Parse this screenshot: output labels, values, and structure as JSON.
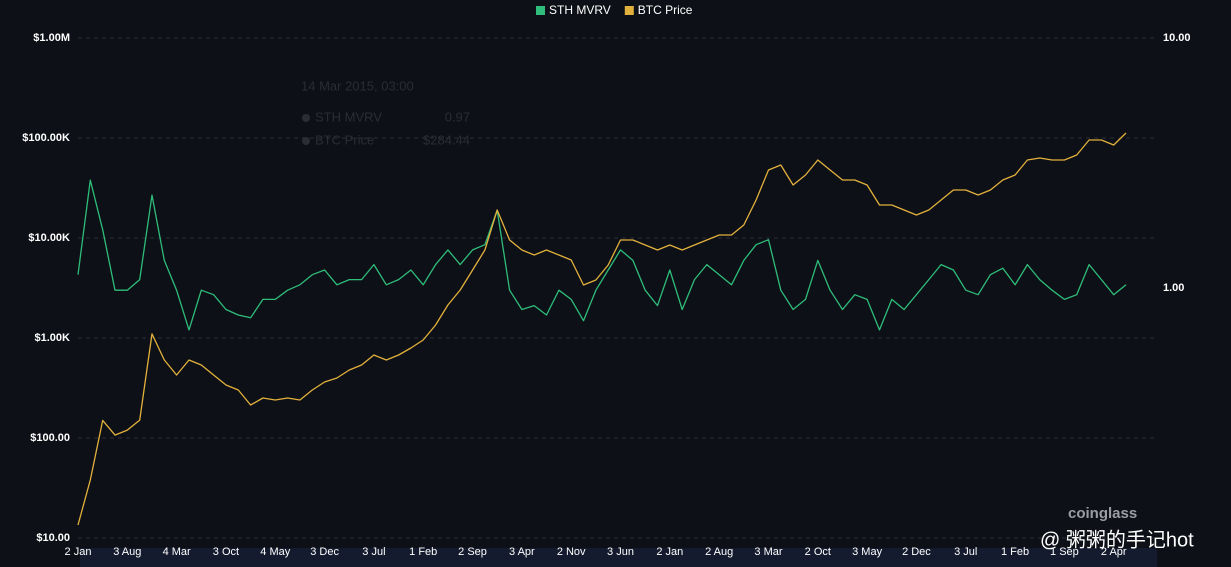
{
  "chart_data": {
    "type": "line",
    "legend_position": "top",
    "grid": true,
    "ylog": true,
    "y2log": true,
    "categories": [
      "2 Jan",
      null,
      null,
      null,
      "3 Aug",
      null,
      null,
      null,
      "4 Mar",
      null,
      null,
      null,
      "3 Oct",
      null,
      null,
      null,
      "4 May",
      null,
      null,
      null,
      "3 Dec",
      null,
      null,
      null,
      "3 Jul",
      null,
      null,
      null,
      "1 Feb",
      null,
      null,
      null,
      "2 Sep",
      null,
      null,
      null,
      "3 Apr",
      null,
      null,
      null,
      "2 Nov",
      null,
      null,
      null,
      "3 Jun",
      null,
      null,
      null,
      "2 Jan",
      null,
      null,
      null,
      "2 Aug",
      null,
      null,
      null,
      "3 Mar",
      null,
      null,
      null,
      "2 Oct",
      null,
      null,
      null,
      "3 May",
      null,
      null,
      null,
      "2 Dec",
      null,
      null,
      null,
      "3 Jul",
      null,
      null,
      null,
      "1 Feb",
      null,
      null,
      null,
      "1 Sep",
      null,
      null,
      null,
      "2 Apr",
      null
    ],
    "series": [
      {
        "name": "STH MVRV",
        "color": "#2ebd7a",
        "axis": "y2",
        "values": [
          1.13,
          2.7,
          1.71,
          0.98,
          0.98,
          1.08,
          2.35,
          1.29,
          0.98,
          0.68,
          0.98,
          0.94,
          0.82,
          0.78,
          0.76,
          0.9,
          0.9,
          0.98,
          1.03,
          1.13,
          1.18,
          1.03,
          1.08,
          1.08,
          1.24,
          1.03,
          1.08,
          1.18,
          1.03,
          1.24,
          1.42,
          1.24,
          1.42,
          1.49,
          2.05,
          0.98,
          0.82,
          0.85,
          0.78,
          0.98,
          0.9,
          0.74,
          0.98,
          1.18,
          1.42,
          1.29,
          0.98,
          0.85,
          1.18,
          0.82,
          1.08,
          1.24,
          1.13,
          1.03,
          1.29,
          1.49,
          1.56,
          0.98,
          0.82,
          0.9,
          1.29,
          0.98,
          0.82,
          0.94,
          0.9,
          0.68,
          0.9,
          0.82,
          0.94,
          1.08,
          1.24,
          1.18,
          0.98,
          0.94,
          1.13,
          1.2,
          1.03,
          1.24,
          1.08,
          0.98,
          0.9,
          0.94,
          1.24,
          1.08,
          0.94,
          1.03
        ]
      },
      {
        "name": "BTC Price",
        "color": "#e2b13c",
        "values": [
          13.5,
          38,
          150,
          107,
          120,
          151,
          1100,
          603,
          427,
          603,
          537,
          427,
          339,
          302,
          214,
          251,
          240,
          251,
          240,
          302,
          363,
          398,
          479,
          537,
          676,
          603,
          676,
          794,
          955,
          1349,
          2138,
          3020,
          4786,
          7586,
          19055,
          9550,
          7586,
          6761,
          7586,
          6761,
          6026,
          3388,
          3802,
          5370,
          9550,
          9550,
          8511,
          7586,
          8511,
          7586,
          8511,
          9550,
          10715,
          10715,
          13490,
          23988,
          47863,
          53703,
          33884,
          42658,
          60256,
          47863,
          38019,
          38019,
          33884,
          21380,
          21380,
          19055,
          16982,
          19055,
          23988,
          30200,
          30200,
          26915,
          30200,
          38019,
          42658,
          60256,
          63096,
          60256,
          60256,
          67608,
          95500,
          95500,
          85114,
          112202
        ]
      }
    ],
    "ylim": [
      10,
      1000000
    ],
    "yticks": [
      {
        "value": 10,
        "label": "$10.00"
      },
      {
        "value": 100,
        "label": "$100.00"
      },
      {
        "value": 1000,
        "label": "$1.00K"
      },
      {
        "value": 10000,
        "label": "$10.00K"
      },
      {
        "value": 100000,
        "label": "$100.00K"
      },
      {
        "value": 1000000,
        "label": "$1.00M"
      }
    ],
    "y2lim": [
      0.1,
      10
    ],
    "y2ticks": [
      {
        "value": 1,
        "label": "1.00"
      },
      {
        "value": 10,
        "label": "10.00"
      }
    ],
    "tooltip": {
      "date": "14 Mar 2015, 03:00",
      "rows": [
        {
          "name": "STH MVRV",
          "value": "0.97"
        },
        {
          "name": "BTC Price",
          "value": "$284.44"
        }
      ]
    },
    "watermark": "coinglass",
    "credit": "@ 粥粥的手记hot"
  }
}
